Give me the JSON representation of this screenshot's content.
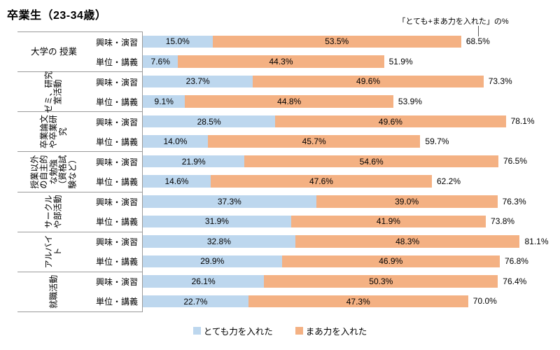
{
  "title": "卒業生（23-34歳）",
  "annotation": {
    "text": "「とても+まあ力を入れた」の%"
  },
  "legend": [
    {
      "key": "very",
      "label": "とても力を入れた",
      "color": "#BDD7EE"
    },
    {
      "key": "somewhat",
      "label": "まあ力を入れた",
      "color": "#F4B183"
    }
  ],
  "colors": {
    "very": "#BDD7EE",
    "somewhat": "#F4B183",
    "table_border": "#9a9a9a",
    "text": "#000000"
  },
  "chart_data": {
    "type": "bar",
    "subtype": "horizontal-stacked",
    "unit": "%",
    "value_format": "0.0%",
    "series_names": [
      "とても力を入れた",
      "まあ力を入れた"
    ],
    "row_labels": [
      "興味・演習",
      "単位・講義"
    ],
    "grid": false,
    "legend_position": "bottom",
    "groups": [
      {
        "label": "大学の 授業",
        "rotated": false,
        "rows": [
          {
            "sub": "興味・演習",
            "very": 15.0,
            "somewhat": 53.5,
            "total": 68.5
          },
          {
            "sub": "単位・講義",
            "very": 7.6,
            "somewhat": 44.3,
            "total": 51.9
          }
        ]
      },
      {
        "label": "ゼミ、研究\n室活動",
        "rotated": true,
        "rows": [
          {
            "sub": "興味・演習",
            "very": 23.7,
            "somewhat": 49.6,
            "total": 73.3
          },
          {
            "sub": "単位・講義",
            "very": 9.1,
            "somewhat": 44.8,
            "total": 53.9
          }
        ]
      },
      {
        "label": "卒業論文\nや卒業研\n究",
        "rotated": true,
        "rows": [
          {
            "sub": "興味・演習",
            "very": 28.5,
            "somewhat": 49.6,
            "total": 78.1
          },
          {
            "sub": "単位・講義",
            "very": 14.0,
            "somewhat": 45.7,
            "total": 59.7
          }
        ]
      },
      {
        "label": "授業以外\nの自主的\nな勉強\n（資格試\n験など）",
        "rotated": true,
        "rows": [
          {
            "sub": "興味・演習",
            "very": 21.9,
            "somewhat": 54.6,
            "total": 76.5
          },
          {
            "sub": "単位・講義",
            "very": 14.6,
            "somewhat": 47.6,
            "total": 62.2
          }
        ]
      },
      {
        "label": "サークル\nや部活動",
        "rotated": true,
        "rows": [
          {
            "sub": "興味・演習",
            "very": 37.3,
            "somewhat": 39.0,
            "total": 76.3
          },
          {
            "sub": "単位・講義",
            "very": 31.9,
            "somewhat": 41.9,
            "total": 73.8
          }
        ]
      },
      {
        "label": "アルバイ\nト",
        "rotated": true,
        "rows": [
          {
            "sub": "興味・演習",
            "very": 32.8,
            "somewhat": 48.3,
            "total": 81.1
          },
          {
            "sub": "単位・講義",
            "very": 29.9,
            "somewhat": 46.9,
            "total": 76.8
          }
        ]
      },
      {
        "label": "就職活動",
        "rotated": true,
        "rows": [
          {
            "sub": "興味・演習",
            "very": 26.1,
            "somewhat": 50.3,
            "total": 76.4
          },
          {
            "sub": "単位・講義",
            "very": 22.7,
            "somewhat": 47.3,
            "total": 70.0
          }
        ]
      }
    ]
  }
}
